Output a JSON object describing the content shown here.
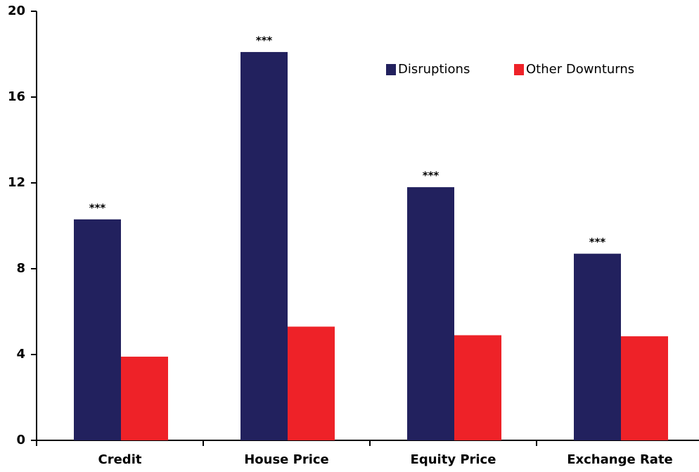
{
  "chart_data": {
    "type": "bar",
    "categories": [
      "Credit",
      "House Price",
      "Equity Price",
      "Exchange Rate"
    ],
    "series": [
      {
        "name": "Disruptions",
        "color": "#22215e",
        "values": [
          10.3,
          18.1,
          11.8,
          8.7
        ]
      },
      {
        "name": "Other Downturns",
        "color": "#ee2228",
        "values": [
          3.9,
          5.3,
          4.9,
          4.85
        ]
      }
    ],
    "annotations": [
      "***",
      "***",
      "***",
      "***"
    ],
    "ylim": [
      0,
      20
    ],
    "yticks": [
      0,
      4,
      8,
      12,
      16,
      20
    ],
    "grid": false,
    "legend": "top-right"
  }
}
